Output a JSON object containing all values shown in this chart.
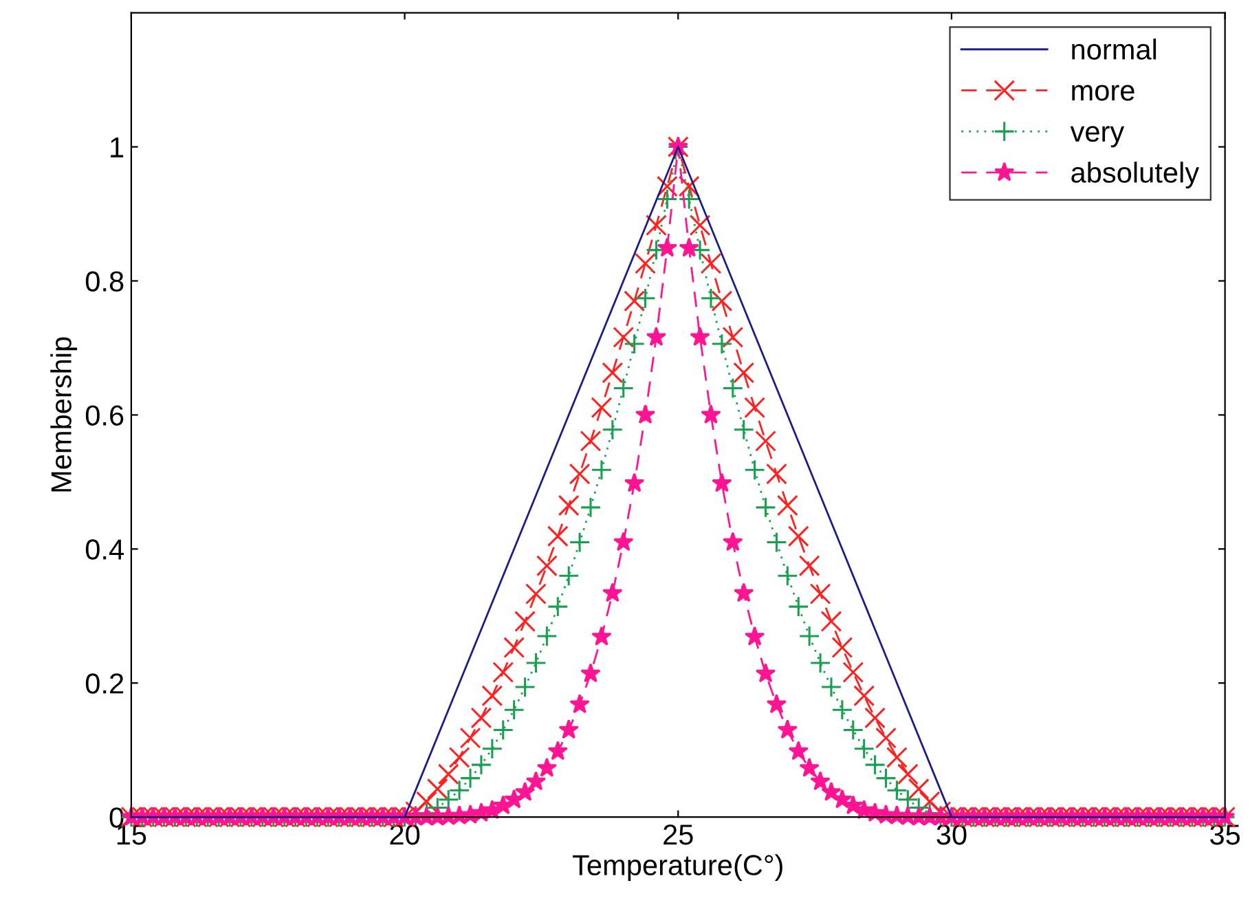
{
  "chart_data": {
    "type": "line",
    "xlabel": "Temperature(C°)",
    "ylabel": "Membership",
    "xlim": [
      15,
      35
    ],
    "xticks": [
      15,
      20,
      25,
      30,
      35
    ],
    "ylim": [
      0,
      1.2
    ],
    "yticks": [
      0,
      0.2,
      0.4,
      0.6,
      0.8,
      1
    ],
    "legend": "top right",
    "x": [
      15,
      15.2,
      15.4,
      15.6,
      15.8,
      16,
      16.2,
      16.4,
      16.6,
      16.8,
      17,
      17.2,
      17.4,
      17.6,
      17.8,
      18,
      18.2,
      18.4,
      18.6,
      18.8,
      19,
      19.2,
      19.4,
      19.6,
      19.8,
      20,
      20.2,
      20.4,
      20.6,
      20.8,
      21,
      21.2,
      21.4,
      21.6,
      21.8,
      22,
      22.2,
      22.4,
      22.6,
      22.8,
      23,
      23.2,
      23.4,
      23.6,
      23.8,
      24,
      24.2,
      24.4,
      24.6,
      24.8,
      25,
      25.2,
      25.4,
      25.6,
      25.8,
      26,
      26.2,
      26.4,
      26.6,
      26.8,
      27,
      27.2,
      27.4,
      27.6,
      27.8,
      28,
      28.2,
      28.4,
      28.6,
      28.8,
      29,
      29.2,
      29.4,
      29.6,
      29.8,
      30,
      30.2,
      30.4,
      30.6,
      30.8,
      31,
      31.2,
      31.4,
      31.6,
      31.8,
      32,
      32.2,
      32.4,
      32.6,
      32.8,
      33,
      33.2,
      33.4,
      33.6,
      33.8,
      34,
      34.2,
      34.4,
      34.6,
      34.8,
      35
    ],
    "series": [
      {
        "name": "normal",
        "color": "#1c1c8c",
        "marker": "none",
        "line_style": "solid",
        "x": [
          15,
          20,
          25,
          30,
          35
        ],
        "values": [
          0,
          0,
          1,
          0,
          0
        ]
      },
      {
        "name": "more",
        "color": "#ff2020",
        "marker": "cross",
        "line_style": "dashed",
        "values": [
          0,
          0,
          0,
          0,
          0,
          0,
          0,
          0,
          0,
          0,
          0,
          0,
          0,
          0,
          0,
          0,
          0,
          0,
          0,
          0,
          0,
          0,
          0,
          0,
          0,
          0,
          0.008,
          0.023,
          0.042,
          0.064,
          0.089,
          0.118,
          0.148,
          0.181,
          0.216,
          0.253,
          0.292,
          0.333,
          0.375,
          0.419,
          0.465,
          0.512,
          0.561,
          0.611,
          0.663,
          0.716,
          0.77,
          0.826,
          0.883,
          0.941,
          1,
          0.941,
          0.883,
          0.826,
          0.77,
          0.716,
          0.663,
          0.611,
          0.561,
          0.512,
          0.465,
          0.419,
          0.375,
          0.333,
          0.292,
          0.253,
          0.216,
          0.181,
          0.148,
          0.118,
          0.089,
          0.064,
          0.042,
          0.023,
          0.008,
          0,
          0,
          0,
          0,
          0,
          0,
          0,
          0,
          0,
          0,
          0,
          0,
          0,
          0,
          0,
          0,
          0,
          0,
          0,
          0,
          0,
          0,
          0,
          0,
          0,
          0
        ]
      },
      {
        "name": "very",
        "color": "#18a050",
        "marker": "plus",
        "line_style": "dotted",
        "values": [
          0,
          0,
          0,
          0,
          0,
          0,
          0,
          0,
          0,
          0,
          0,
          0,
          0,
          0,
          0,
          0,
          0,
          0,
          0,
          0,
          0,
          0,
          0,
          0,
          0,
          0,
          0.002,
          0.006,
          0.014,
          0.026,
          0.04,
          0.058,
          0.078,
          0.102,
          0.13,
          0.16,
          0.194,
          0.23,
          0.27,
          0.314,
          0.36,
          0.41,
          0.462,
          0.518,
          0.578,
          0.64,
          0.706,
          0.774,
          0.846,
          0.922,
          1,
          0.922,
          0.846,
          0.774,
          0.706,
          0.64,
          0.578,
          0.518,
          0.462,
          0.41,
          0.36,
          0.314,
          0.27,
          0.23,
          0.194,
          0.16,
          0.13,
          0.102,
          0.078,
          0.058,
          0.04,
          0.026,
          0.014,
          0.006,
          0.002,
          0,
          0,
          0,
          0,
          0,
          0,
          0,
          0,
          0,
          0,
          0,
          0,
          0,
          0,
          0,
          0,
          0,
          0,
          0,
          0,
          0,
          0,
          0,
          0,
          0,
          0
        ]
      },
      {
        "name": "absolutely",
        "color": "#ff1493",
        "marker": "star",
        "line_style": "dashed",
        "values": [
          0,
          0,
          0,
          0,
          0,
          0,
          0,
          0,
          0,
          0,
          0,
          0,
          0,
          0,
          0,
          0,
          0,
          0,
          0,
          0,
          0,
          0,
          0,
          0,
          0,
          0,
          0,
          0,
          0,
          0.001,
          0.002,
          0.003,
          0.006,
          0.01,
          0.017,
          0.026,
          0.037,
          0.053,
          0.073,
          0.098,
          0.13,
          0.168,
          0.214,
          0.269,
          0.334,
          0.41,
          0.498,
          0.6,
          0.716,
          0.849,
          1,
          0.849,
          0.716,
          0.6,
          0.498,
          0.41,
          0.334,
          0.269,
          0.214,
          0.168,
          0.13,
          0.098,
          0.073,
          0.053,
          0.037,
          0.026,
          0.017,
          0.01,
          0.006,
          0.003,
          0.002,
          0.001,
          0,
          0,
          0,
          0,
          0,
          0,
          0,
          0,
          0,
          0,
          0,
          0,
          0,
          0,
          0,
          0,
          0,
          0,
          0,
          0,
          0,
          0,
          0,
          0,
          0,
          0,
          0,
          0,
          0
        ]
      }
    ]
  }
}
